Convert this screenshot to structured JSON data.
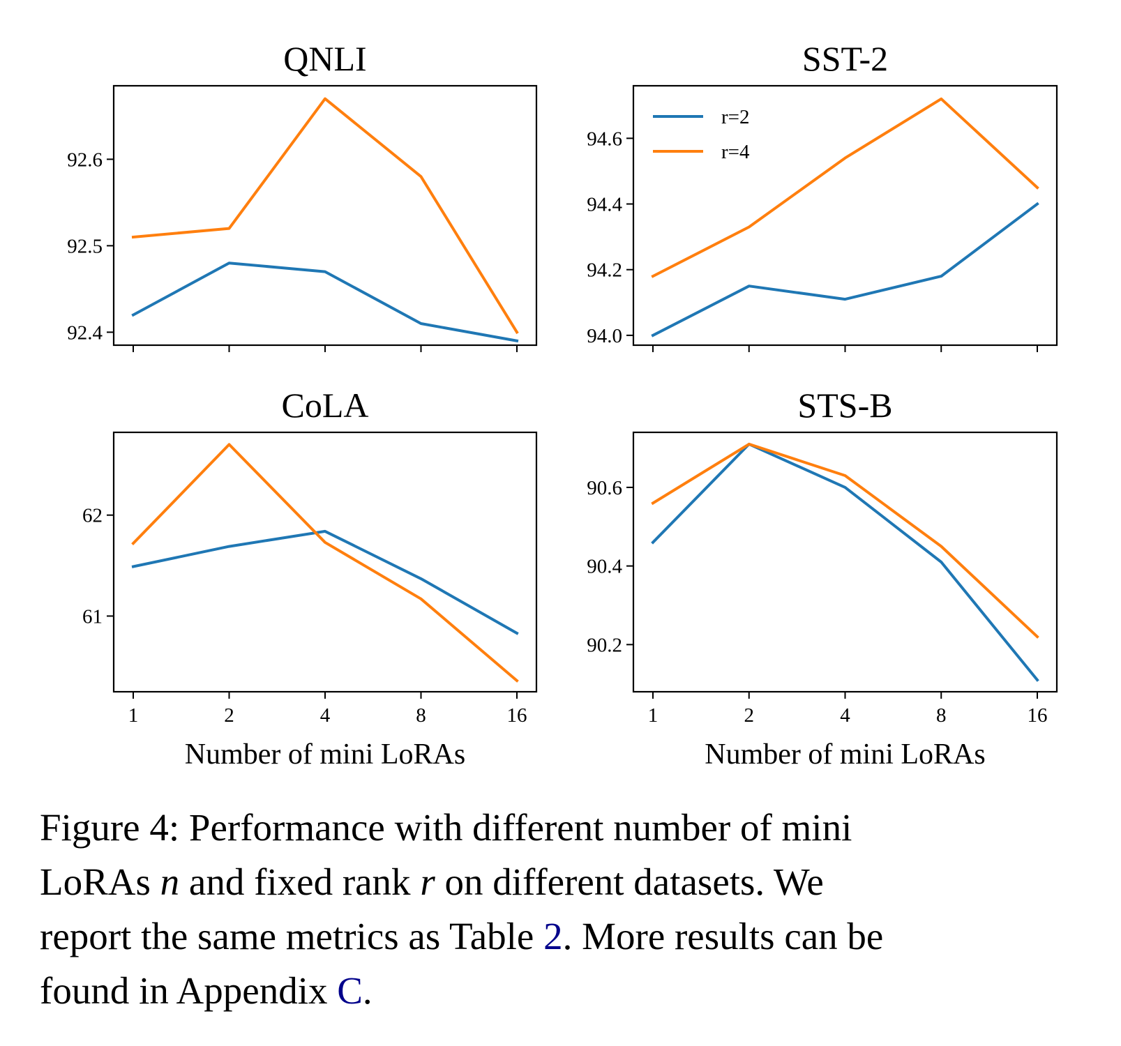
{
  "chart_data": [
    {
      "type": "line",
      "title": "QNLI",
      "xlabel": "",
      "ylabel": "",
      "categories": [
        "1",
        "2",
        "4",
        "8",
        "16"
      ],
      "x_tick_labels_shown": false,
      "ylim": [
        92.385,
        92.685
      ],
      "yticks": [
        "92.4",
        "92.5",
        "92.6"
      ],
      "series": [
        {
          "name": "r=2",
          "color": "#1f77b4",
          "values": [
            92.42,
            92.48,
            92.47,
            92.41,
            92.39
          ]
        },
        {
          "name": "r=4",
          "color": "#ff7f0e",
          "values": [
            92.51,
            92.52,
            92.67,
            92.58,
            92.4
          ]
        }
      ],
      "legend": null,
      "grid": false
    },
    {
      "type": "line",
      "title": "SST-2",
      "xlabel": "",
      "ylabel": "",
      "categories": [
        "1",
        "2",
        "4",
        "8",
        "16"
      ],
      "x_tick_labels_shown": false,
      "ylim": [
        93.97,
        94.76
      ],
      "yticks": [
        "94.0",
        "94.2",
        "94.4",
        "94.6"
      ],
      "series": [
        {
          "name": "r=2",
          "color": "#1f77b4",
          "values": [
            94.0,
            94.15,
            94.11,
            94.18,
            94.4
          ]
        },
        {
          "name": "r=4",
          "color": "#ff7f0e",
          "values": [
            94.18,
            94.33,
            94.54,
            94.72,
            94.45
          ]
        }
      ],
      "legend": "top-left",
      "grid": false
    },
    {
      "type": "line",
      "title": "CoLA",
      "xlabel": "Number of mini LoRAs",
      "ylabel": "",
      "categories": [
        "1",
        "2",
        "4",
        "8",
        "16"
      ],
      "x_tick_labels_shown": true,
      "ylim": [
        60.25,
        62.82
      ],
      "yticks": [
        "61",
        "62"
      ],
      "series": [
        {
          "name": "r=2",
          "color": "#1f77b4",
          "values": [
            61.49,
            61.69,
            61.84,
            61.37,
            60.83
          ]
        },
        {
          "name": "r=4",
          "color": "#ff7f0e",
          "values": [
            61.72,
            62.7,
            61.73,
            61.17,
            60.36
          ]
        }
      ],
      "legend": null,
      "grid": false
    },
    {
      "type": "line",
      "title": "STS-B",
      "xlabel": "Number of mini LoRAs",
      "ylabel": "",
      "categories": [
        "1",
        "2",
        "4",
        "8",
        "16"
      ],
      "x_tick_labels_shown": true,
      "ylim": [
        90.08,
        90.74
      ],
      "yticks": [
        "90.2",
        "90.4",
        "90.6"
      ],
      "series": [
        {
          "name": "r=2",
          "color": "#1f77b4",
          "values": [
            90.46,
            90.71,
            90.6,
            90.41,
            90.11
          ]
        },
        {
          "name": "r=4",
          "color": "#ff7f0e",
          "values": [
            90.56,
            90.71,
            90.63,
            90.45,
            90.22
          ]
        }
      ],
      "legend": null,
      "grid": false
    }
  ],
  "caption": {
    "line1": "Figure 4: Performance with different number of mini",
    "line2_a": "LoRAs ",
    "line2_n": "n",
    "line2_b": " and fixed rank ",
    "line2_r": "r",
    "line2_c": " on different datasets.  We",
    "line3_a": "report the same metrics as Table ",
    "line3_ref": "2",
    "line3_b": ". More results can be",
    "line4_a": "found in Appendix ",
    "line4_ref": "C",
    "line4_b": ".",
    "ref_color": "#00008b"
  }
}
